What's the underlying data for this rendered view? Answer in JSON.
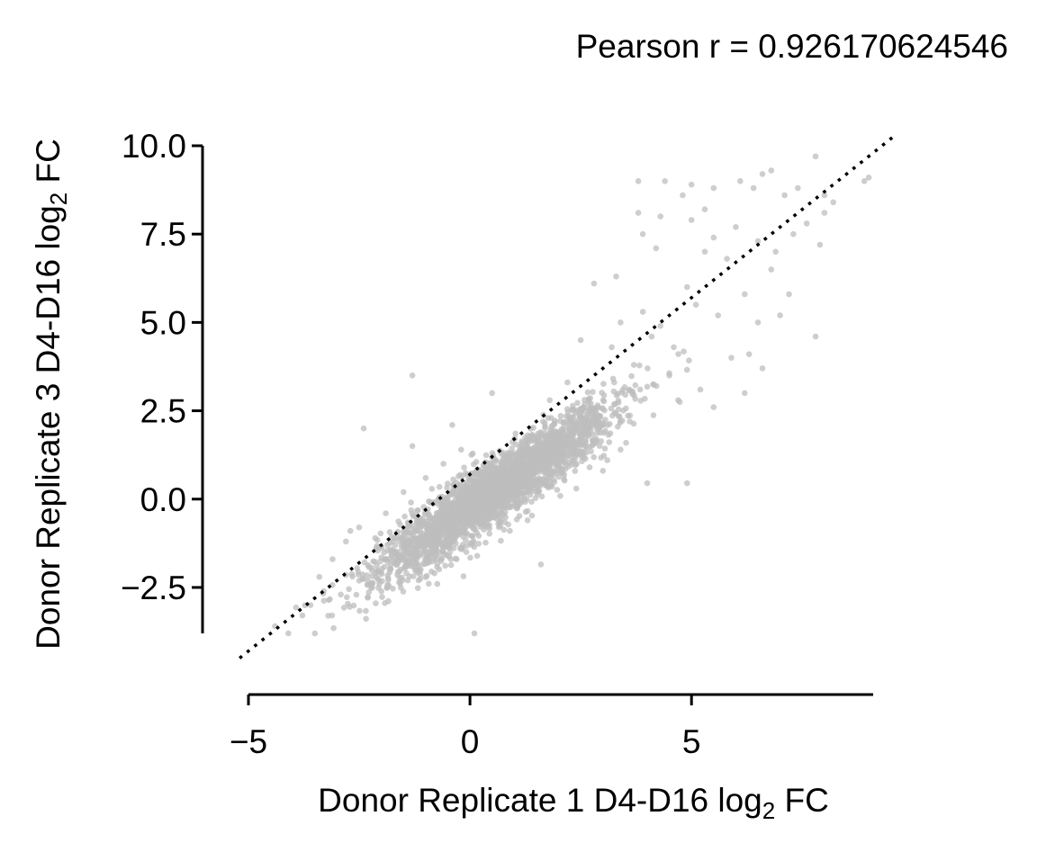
{
  "chart_data": {
    "type": "scatter",
    "title": "Pearson r = 0.926170624546",
    "xlabel": {
      "pre": "Donor Replicate 1 D4-D16 log",
      "sub": "2",
      "post": " FC"
    },
    "ylabel": {
      "pre": "Donor Replicate 3 D4-D16 log",
      "sub": "2",
      "post": " FC"
    },
    "xlim": [
      -5.0,
      9.1
    ],
    "ylim": [
      -3.8,
      10.0
    ],
    "x_ticks": [
      -5,
      0,
      5
    ],
    "x_tick_labels": [
      "−5",
      "0",
      "5"
    ],
    "y_ticks": [
      -2.5,
      0.0,
      2.5,
      5.0,
      7.5,
      10.0
    ],
    "y_tick_labels": [
      "−2.5",
      "0.0",
      "2.5",
      "5.0",
      "7.5",
      "10.0"
    ],
    "identity_line": {
      "x": [
        -5.2,
        9.6
      ],
      "y": [
        -4.5,
        10.3
      ],
      "style": "dotted",
      "color": "#000000"
    },
    "point_color": "#bdbdbd",
    "grid": false,
    "legend": "none",
    "n_points": 3000,
    "core_distribution": {
      "x_mean": 0.6,
      "x_sd": 1.3,
      "y_slope": 0.85,
      "y_intercept": -0.25,
      "resid_sd": 0.45
    },
    "points": [
      [
        -4.4,
        -3.6
      ],
      [
        -4.1,
        -3.8
      ],
      [
        -3.5,
        -3.8
      ],
      [
        -2.4,
        2.0
      ],
      [
        -1.3,
        3.5
      ],
      [
        -1.3,
        1.5
      ],
      [
        -0.4,
        2.1
      ],
      [
        0.1,
        -3.8
      ],
      [
        0.5,
        3.0
      ],
      [
        1.6,
        -1.85
      ],
      [
        3.0,
        0.8
      ],
      [
        4.0,
        0.45
      ],
      [
        4.9,
        0.45
      ],
      [
        5.5,
        2.6
      ],
      [
        6.2,
        3.0
      ],
      [
        6.6,
        3.7
      ],
      [
        7.2,
        5.8
      ],
      [
        7.8,
        4.6
      ],
      [
        7.0,
        5.2
      ],
      [
        6.8,
        6.5
      ],
      [
        6.2,
        5.8
      ],
      [
        5.8,
        6.8
      ],
      [
        5.3,
        7.0
      ],
      [
        5.0,
        7.9
      ],
      [
        4.3,
        8.0
      ],
      [
        4.4,
        9.0
      ],
      [
        3.8,
        8.1
      ],
      [
        3.8,
        9.0
      ],
      [
        3.9,
        7.5
      ],
      [
        4.2,
        7.1
      ],
      [
        4.8,
        8.6
      ],
      [
        5.0,
        8.9
      ],
      [
        5.3,
        8.2
      ],
      [
        5.5,
        8.8
      ],
      [
        6.1,
        9.0
      ],
      [
        6.4,
        8.8
      ],
      [
        6.6,
        9.2
      ],
      [
        6.8,
        9.3
      ],
      [
        7.1,
        8.6
      ],
      [
        7.4,
        8.8
      ],
      [
        7.8,
        9.7
      ],
      [
        8.0,
        8.6
      ],
      [
        8.0,
        8.1
      ],
      [
        8.2,
        8.4
      ],
      [
        8.9,
        9.0
      ],
      [
        9.0,
        9.1
      ],
      [
        7.6,
        7.8
      ],
      [
        7.9,
        7.2
      ],
      [
        6.0,
        7.7
      ],
      [
        5.5,
        7.4
      ],
      [
        6.5,
        7.3
      ],
      [
        6.9,
        7.0
      ],
      [
        7.3,
        7.5
      ],
      [
        4.9,
        6.0
      ],
      [
        5.1,
        5.5
      ],
      [
        5.6,
        5.2
      ],
      [
        4.6,
        4.3
      ],
      [
        4.3,
        4.9
      ],
      [
        3.7,
        3.8
      ],
      [
        3.3,
        6.3
      ],
      [
        2.8,
        6.1
      ],
      [
        6.3,
        4.1
      ],
      [
        5.9,
        4.0
      ],
      [
        6.5,
        5.0
      ],
      [
        4.5,
        3.5
      ],
      [
        4.7,
        2.8
      ],
      [
        5.2,
        3.1
      ],
      [
        3.6,
        3.1
      ],
      [
        -3.4,
        -2.2
      ],
      [
        -3.1,
        -1.7
      ],
      [
        -2.8,
        -1.2
      ],
      [
        -2.7,
        -0.9
      ],
      [
        -3.3,
        -2.6
      ],
      [
        -3.6,
        -3.0
      ],
      [
        -3.2,
        -3.3
      ],
      [
        -2.5,
        -0.8
      ],
      [
        -1.9,
        -0.4
      ],
      [
        -1.5,
        0.2
      ],
      [
        -1.0,
        0.6
      ],
      [
        -0.6,
        1.0
      ],
      [
        -0.2,
        1.4
      ],
      [
        -0.8,
        -2.1
      ],
      [
        -0.3,
        -1.7
      ],
      [
        0.9,
        -0.9
      ],
      [
        1.3,
        -0.6
      ],
      [
        2.4,
        0.3
      ],
      [
        2.7,
        0.9
      ],
      [
        3.4,
        1.4
      ],
      [
        3.1,
        1.1
      ],
      [
        2.2,
        3.3
      ],
      [
        1.8,
        2.8
      ],
      [
        3.2,
        4.3
      ],
      [
        2.5,
        4.5
      ],
      [
        3.9,
        5.3
      ],
      [
        4.1,
        4.6
      ],
      [
        3.4,
        5.0
      ]
    ]
  }
}
